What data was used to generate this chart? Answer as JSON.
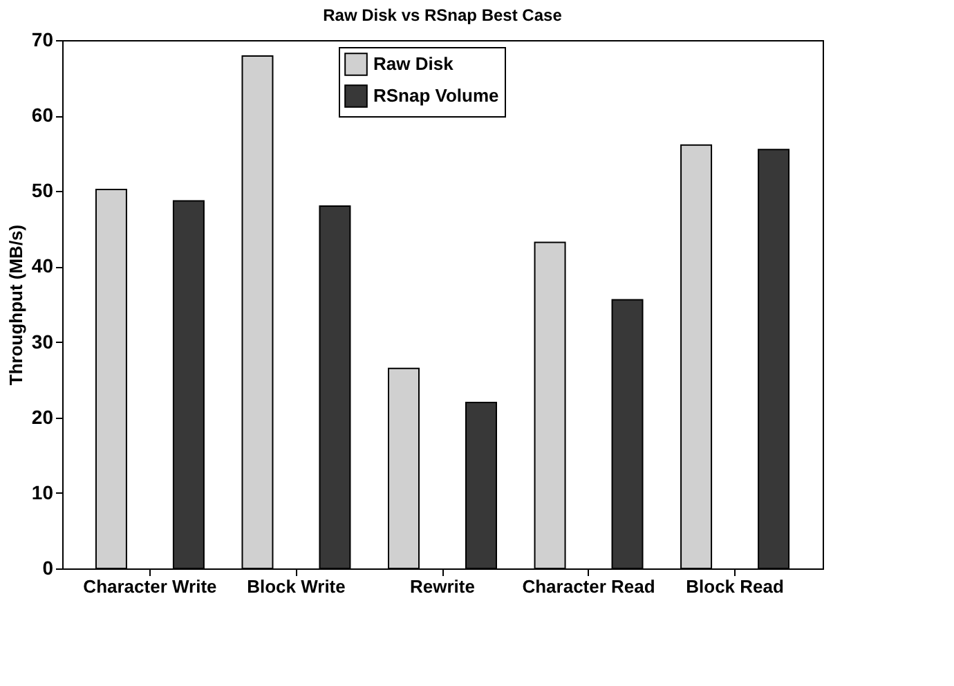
{
  "chart_data": {
    "type": "bar",
    "title": "Raw Disk vs RSnap Best Case",
    "ylabel": "Throughput (MB/s)",
    "categories": [
      "Character Write",
      "Block Write",
      "Rewrite",
      "Character Read",
      "Block Read"
    ],
    "series": [
      {
        "name": "Raw Disk",
        "color": "#d0d0d0",
        "values": [
          50.2,
          67.9,
          26.5,
          43.2,
          56.1
        ]
      },
      {
        "name": "RSnap Volume",
        "color": "#383838",
        "values": [
          48.7,
          48.0,
          22.0,
          35.6,
          55.5
        ]
      }
    ],
    "ylim": [
      0,
      70
    ],
    "yticks": [
      0,
      10,
      20,
      30,
      40,
      50,
      60,
      70
    ],
    "grid": false,
    "legend": "top"
  }
}
